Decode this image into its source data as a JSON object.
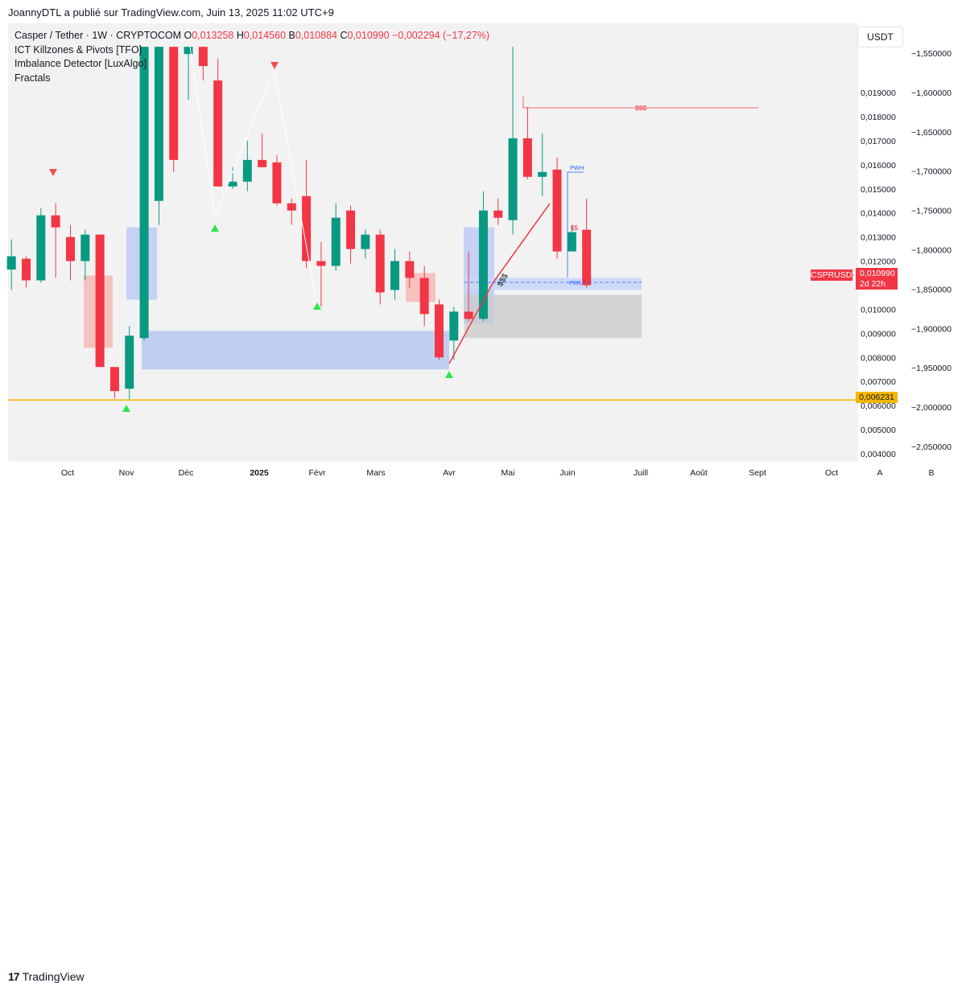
{
  "header": {
    "published": "JoannyDTL a publié sur TradingView.com, Juin 13, 2025 11:02 UTC+9"
  },
  "legend": {
    "symbol": "Casper / Tether · 1W · CRYPTOCOM",
    "o_label": "O",
    "o_value": "0,013258",
    "h_label": "H",
    "h_value": "0,014560",
    "b_label": "B",
    "b_value": "0,010884",
    "c_label": "C",
    "c_value": "0,010990",
    "change": "−0,002294 (−17,27%)",
    "indicators": [
      "ICT Killzones & Pivots [TFO]",
      "Imbalance Detector [LuxAlgo]",
      "Fractals"
    ]
  },
  "currency_button": "USDT",
  "price_tag": {
    "symbol": "CSPRUSDT",
    "price": "0,010990",
    "countdown": "2d 22h"
  },
  "level_tag": "0,006231",
  "annotations": {
    "liquidity_top": "$$$",
    "liquidity_low": "$$$",
    "liquidity_mid": "$$",
    "pwh": "PWH",
    "pwl": "PWL"
  },
  "footer": {
    "brand": "TradingView",
    "logo_mark": "17"
  },
  "colors": {
    "up": "#089981",
    "down": "#f23645",
    "level": "#f5b700",
    "fvg_blue": "#b9c8f5",
    "fvg_red": "#f5b5b0",
    "box_grey": "#c9c9c9",
    "tag_red": "#f23645"
  },
  "chart_data": {
    "type": "candlestick",
    "title": "Casper / Tether · 1W · CRYPTOCOM",
    "x_ticks": [
      "Oct",
      "Nov",
      "Déc",
      "2025",
      "Févr",
      "Mars",
      "Avr",
      "Mai",
      "Juin",
      "Juill",
      "Août",
      "Sept",
      "Oct"
    ],
    "y_ticks": [
      "0,004000",
      "0,005000",
      "0,006000",
      "0,007000",
      "0,008000",
      "0,009000",
      "0,010000",
      "0,011000",
      "0,012000",
      "0,013000",
      "0,014000",
      "0,015000",
      "0,016000",
      "0,017000",
      "0,018000",
      "0,019000"
    ],
    "y2_ticks": [
      "−1,550000",
      "−1,600000",
      "−1,650000",
      "−1,700000",
      "−1,750000",
      "−1,800000",
      "−1,850000",
      "−1,900000",
      "−1,950000",
      "−2,000000",
      "−2,050000"
    ],
    "extra_axis_labels": [
      "A",
      "B"
    ],
    "ylim": [
      0.0035,
      0.0209
    ],
    "horizontal_level": 0.006231,
    "candles": [
      {
        "o": 0.01165,
        "h": 0.0129,
        "l": 0.0108,
        "c": 0.0122
      },
      {
        "o": 0.0121,
        "h": 0.0122,
        "l": 0.0109,
        "c": 0.0112
      },
      {
        "o": 0.0112,
        "h": 0.0142,
        "l": 0.0111,
        "c": 0.0139
      },
      {
        "o": 0.0139,
        "h": 0.0144,
        "l": 0.0113,
        "c": 0.0134
      },
      {
        "o": 0.013,
        "h": 0.0135,
        "l": 0.0112,
        "c": 0.012
      },
      {
        "o": 0.012,
        "h": 0.0133,
        "l": 0.0112,
        "c": 0.0131
      },
      {
        "o": 0.0131,
        "h": 0.0131,
        "l": 0.0076,
        "c": 0.0076
      },
      {
        "o": 0.0076,
        "h": 0.0076,
        "l": 0.0063,
        "c": 0.0066
      },
      {
        "o": 0.0067,
        "h": 0.0093,
        "l": 0.0062,
        "c": 0.0089
      },
      {
        "o": 0.0088,
        "h": 0.0209,
        "l": 0.0087,
        "c": 0.0209
      },
      {
        "o": 0.0145,
        "h": 0.0209,
        "l": 0.0135,
        "c": 0.0209
      },
      {
        "o": 0.0209,
        "h": 0.0209,
        "l": 0.0157,
        "c": 0.0162
      },
      {
        "o": 0.0206,
        "h": 0.0209,
        "l": 0.0187,
        "c": 0.0209
      },
      {
        "o": 0.0209,
        "h": 0.0209,
        "l": 0.0195,
        "c": 0.0201
      },
      {
        "o": 0.0195,
        "h": 0.0204,
        "l": 0.0151,
        "c": 0.0151
      },
      {
        "o": 0.0151,
        "h": 0.0159,
        "l": 0.015,
        "c": 0.0153
      },
      {
        "o": 0.0153,
        "h": 0.017,
        "l": 0.0149,
        "c": 0.0162
      },
      {
        "o": 0.0162,
        "h": 0.0173,
        "l": 0.016,
        "c": 0.0159
      },
      {
        "o": 0.0161,
        "h": 0.0164,
        "l": 0.0143,
        "c": 0.0144
      },
      {
        "o": 0.0144,
        "h": 0.0146,
        "l": 0.0135,
        "c": 0.0141
      },
      {
        "o": 0.0147,
        "h": 0.0162,
        "l": 0.0117,
        "c": 0.012
      },
      {
        "o": 0.012,
        "h": 0.0128,
        "l": 0.0101,
        "c": 0.0118
      },
      {
        "o": 0.0118,
        "h": 0.0144,
        "l": 0.0116,
        "c": 0.0138
      },
      {
        "o": 0.0141,
        "h": 0.0143,
        "l": 0.0119,
        "c": 0.0125
      },
      {
        "o": 0.0125,
        "h": 0.0133,
        "l": 0.0121,
        "c": 0.0131
      },
      {
        "o": 0.0131,
        "h": 0.0133,
        "l": 0.0102,
        "c": 0.0107
      },
      {
        "o": 0.0108,
        "h": 0.0125,
        "l": 0.0104,
        "c": 0.012
      },
      {
        "o": 0.012,
        "h": 0.0124,
        "l": 0.0109,
        "c": 0.0113
      },
      {
        "o": 0.0113,
        "h": 0.0118,
        "l": 0.0093,
        "c": 0.0098
      },
      {
        "o": 0.0102,
        "h": 0.0104,
        "l": 0.0079,
        "c": 0.008
      },
      {
        "o": 0.0087,
        "h": 0.0101,
        "l": 0.0079,
        "c": 0.0099
      },
      {
        "o": 0.0099,
        "h": 0.0124,
        "l": 0.0095,
        "c": 0.0096
      },
      {
        "o": 0.0096,
        "h": 0.0149,
        "l": 0.0095,
        "c": 0.0141
      },
      {
        "o": 0.0141,
        "h": 0.0146,
        "l": 0.0135,
        "c": 0.0138
      },
      {
        "o": 0.0137,
        "h": 0.0209,
        "l": 0.0131,
        "c": 0.0171
      },
      {
        "o": 0.0171,
        "h": 0.0184,
        "l": 0.0154,
        "c": 0.0155
      },
      {
        "o": 0.0155,
        "h": 0.0173,
        "l": 0.0147,
        "c": 0.0157
      },
      {
        "o": 0.0158,
        "h": 0.0163,
        "l": 0.0121,
        "c": 0.0124
      },
      {
        "o": 0.0124,
        "h": 0.0135,
        "l": 0.0124,
        "c": 0.0132
      },
      {
        "o": 0.0133,
        "h": 0.0146,
        "l": 0.0109,
        "c": 0.011
      }
    ]
  }
}
